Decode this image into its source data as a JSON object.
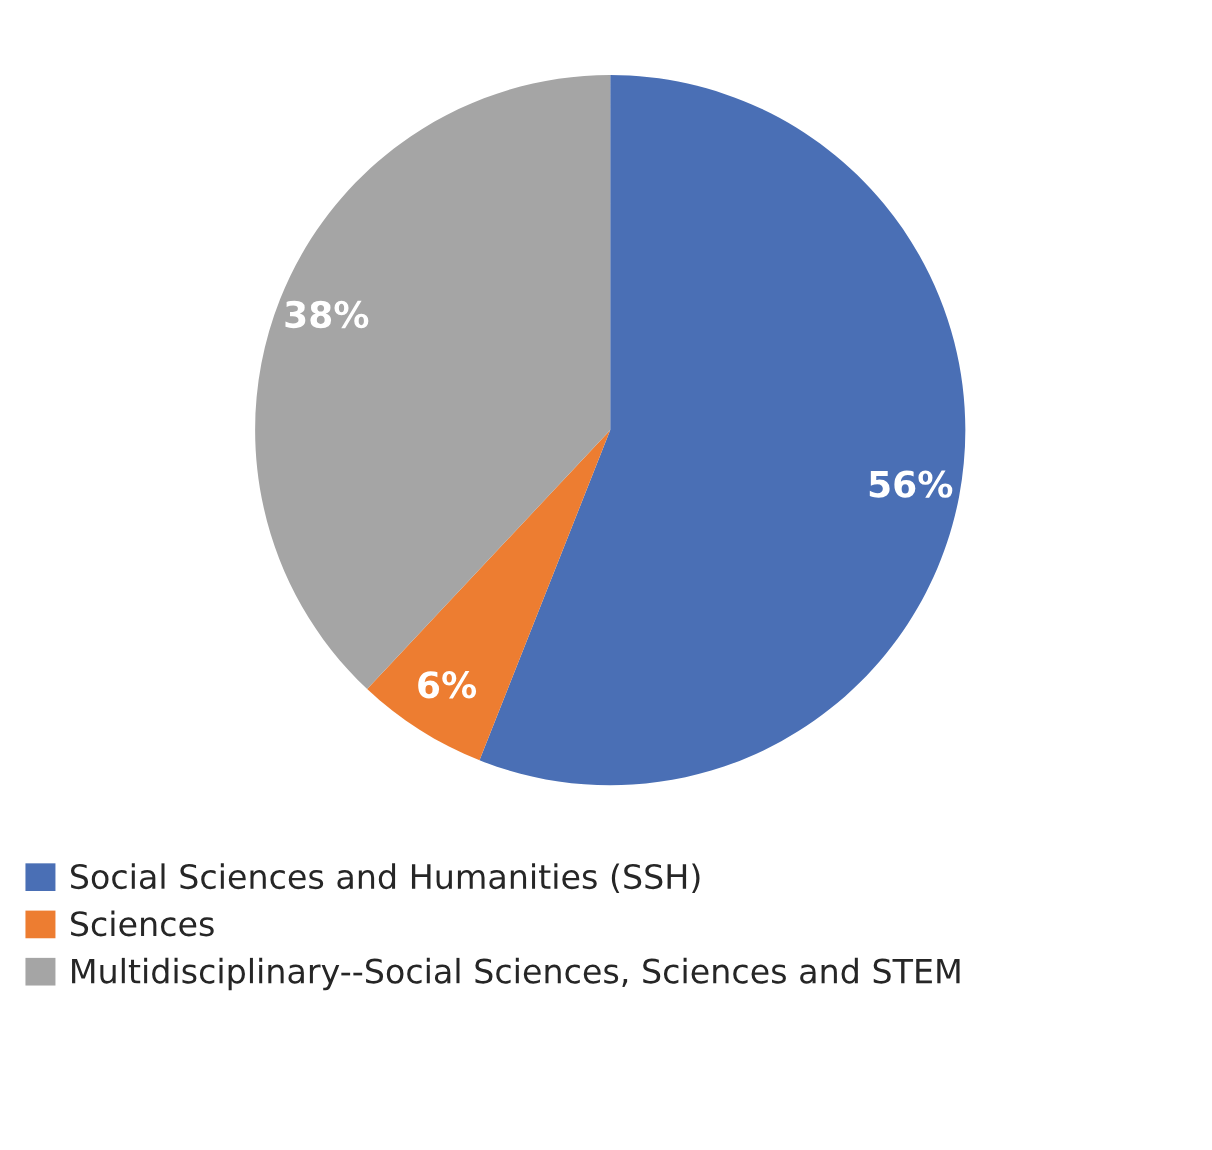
{
  "chart_data": {
    "type": "pie",
    "categories": [
      "Social Sciences and Humanities (SSH)",
      "Sciences",
      "Multidisciplinary--Social Sciences, Sciences and STEM"
    ],
    "values": [
      56,
      6,
      38
    ],
    "colors": [
      "#4a6fb5",
      "#ed7d31",
      "#a5a5a5"
    ],
    "value_labels": [
      "56%",
      "6%",
      "38%"
    ],
    "legend": "bottom"
  }
}
